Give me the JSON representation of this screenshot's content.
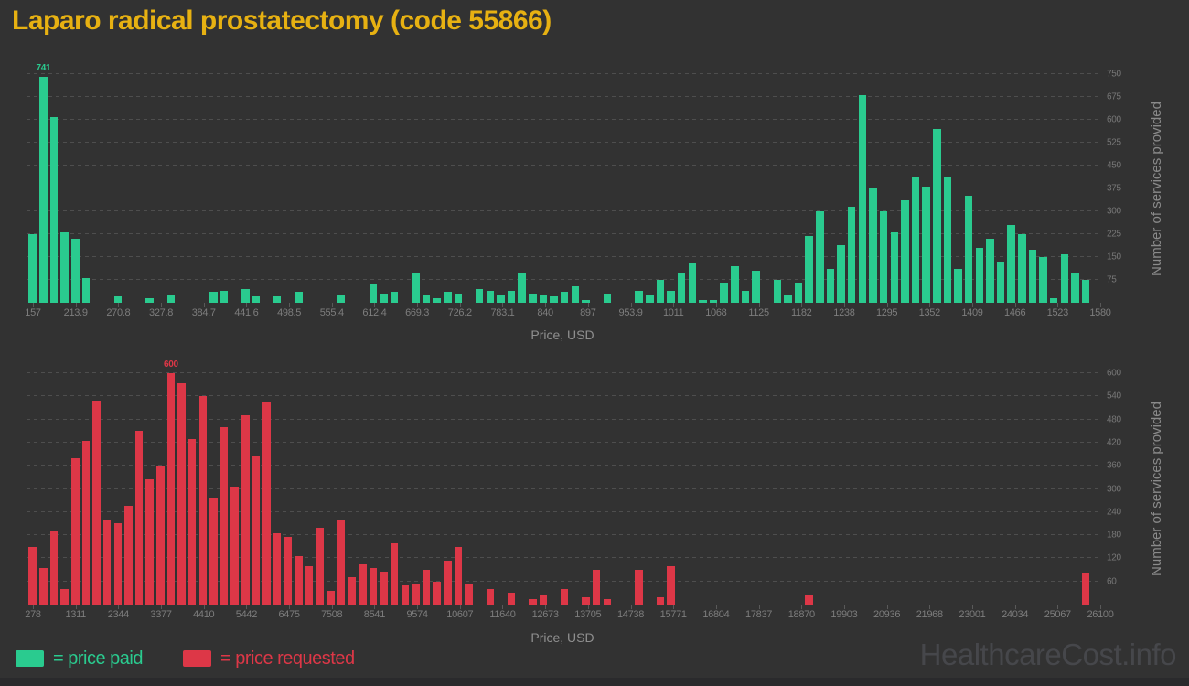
{
  "title": "Laparo radical prostatectomy (code 55866)",
  "watermark": "HealthcareCost.info",
  "legend": {
    "paid": "= price paid",
    "requested": "= price requested"
  },
  "colors": {
    "background": "#323232",
    "paid_green": "#2acb8f",
    "requested_red": "#dd3747",
    "title_gold": "#e7b112",
    "tick_text": "#7d7d7d",
    "axis_title_text": "#8f8f8f",
    "gridline": "#4e4e4e",
    "watermark_text": "#46474b"
  },
  "chart_data": [
    {
      "type": "bar",
      "series_name": "price paid",
      "color": "#2acb8f",
      "xlabel": "Price, USD",
      "ylabel": "Number of services provided",
      "xrange": [
        157,
        1580
      ],
      "ymax": 750,
      "grid": true,
      "y_ticks": [
        75,
        150,
        225,
        300,
        375,
        450,
        525,
        600,
        675,
        750
      ],
      "x_ticks": [
        "157",
        "213.9",
        "270.8",
        "327.8",
        "384.7",
        "441.6",
        "498.5",
        "555.4",
        "612.4",
        "669.3",
        "726.2",
        "783.1",
        "840",
        "897",
        "953.9",
        "1011",
        "1068",
        "1125",
        "1182",
        "1238",
        "1295",
        "1352",
        "1409",
        "1466",
        "1523",
        "1580"
      ],
      "peak_label": "741",
      "peak_index": 1,
      "values": [
        225,
        741,
        610,
        230,
        210,
        80,
        0,
        0,
        20,
        0,
        0,
        15,
        0,
        25,
        0,
        0,
        0,
        35,
        40,
        0,
        45,
        20,
        0,
        20,
        0,
        35,
        0,
        0,
        0,
        25,
        0,
        0,
        60,
        30,
        35,
        0,
        95,
        25,
        15,
        35,
        30,
        0,
        45,
        40,
        25,
        40,
        95,
        30,
        25,
        20,
        35,
        55,
        10,
        0,
        30,
        0,
        0,
        40,
        25,
        75,
        40,
        95,
        130,
        10,
        10,
        65,
        120,
        40,
        105,
        0,
        75,
        25,
        65,
        220,
        300,
        110,
        190,
        315,
        680,
        375,
        300,
        230,
        335,
        410,
        380,
        570,
        415,
        110,
        350,
        180,
        210,
        135,
        255,
        225,
        175,
        150,
        15,
        160,
        100,
        75
      ]
    },
    {
      "type": "bar",
      "series_name": "price requested",
      "color": "#dd3747",
      "xlabel": "Price, USD",
      "ylabel": "Number of services provided",
      "xrange": [
        278,
        26100
      ],
      "ymax": 600,
      "grid": true,
      "y_ticks": [
        60,
        120,
        180,
        240,
        300,
        360,
        420,
        480,
        540,
        600
      ],
      "x_ticks": [
        "278",
        "1311",
        "2344",
        "3377",
        "4410",
        "5442",
        "6475",
        "7508",
        "8541",
        "9574",
        "10607",
        "11640",
        "12673",
        "13705",
        "14738",
        "15771",
        "16804",
        "17837",
        "18870",
        "19903",
        "20936",
        "21968",
        "23001",
        "24034",
        "25067",
        "26100"
      ],
      "peak_label": "600",
      "peak_index": 13,
      "values": [
        150,
        95,
        190,
        40,
        380,
        425,
        530,
        220,
        210,
        255,
        450,
        325,
        360,
        600,
        575,
        430,
        540,
        275,
        460,
        305,
        490,
        385,
        525,
        185,
        175,
        125,
        100,
        200,
        35,
        220,
        70,
        105,
        95,
        85,
        160,
        50,
        55,
        90,
        60,
        115,
        150,
        55,
        0,
        40,
        0,
        30,
        0,
        15,
        25,
        0,
        40,
        0,
        20,
        90,
        15,
        0,
        0,
        90,
        0,
        20,
        100,
        0,
        0,
        0,
        0,
        0,
        0,
        0,
        0,
        0,
        0,
        0,
        0,
        25,
        0,
        0,
        0,
        0,
        0,
        0,
        0,
        0,
        0,
        0,
        0,
        0,
        0,
        0,
        0,
        0,
        0,
        0,
        0,
        0,
        0,
        0,
        0,
        0,
        0,
        80
      ]
    }
  ]
}
